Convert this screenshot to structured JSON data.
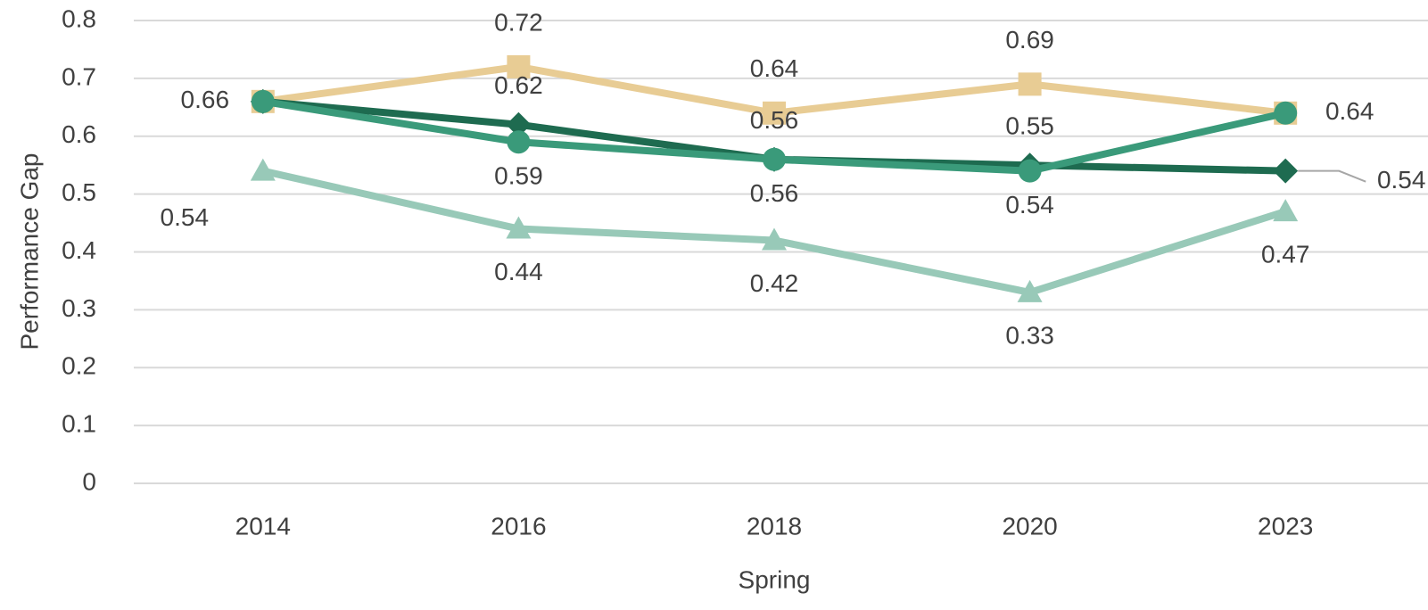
{
  "chart_data": {
    "type": "line",
    "x_label": "Spring",
    "y_label": "Performance Gap",
    "categories": [
      "2014",
      "2016",
      "2018",
      "2020",
      "2023"
    ],
    "ylim": [
      0,
      0.8
    ],
    "yticks": [
      0,
      0.1,
      0.2,
      0.3,
      0.4,
      0.5,
      0.6,
      0.7,
      0.8
    ],
    "grid": true,
    "series": [
      {
        "color": "#e8cc94",
        "marker": "square",
        "values": [
          0.66,
          0.72,
          0.64,
          0.69,
          0.64
        ],
        "labeled": [
          true,
          true,
          true,
          true,
          true
        ]
      },
      {
        "color": "#98c9b8",
        "marker": "triangle",
        "values": [
          0.54,
          0.44,
          0.42,
          0.33,
          0.47
        ],
        "labeled": [
          true,
          true,
          true,
          true,
          true
        ]
      },
      {
        "color": "#1e6b50",
        "marker": "diamond",
        "values": [
          0.66,
          0.62,
          0.56,
          0.55,
          0.54
        ],
        "labeled": [
          false,
          true,
          true,
          true,
          true
        ]
      },
      {
        "color": "#3a9a7a",
        "marker": "circle",
        "values": [
          0.66,
          0.59,
          0.56,
          0.54,
          0.64
        ],
        "labeled": [
          false,
          true,
          true,
          true,
          false
        ]
      }
    ]
  }
}
